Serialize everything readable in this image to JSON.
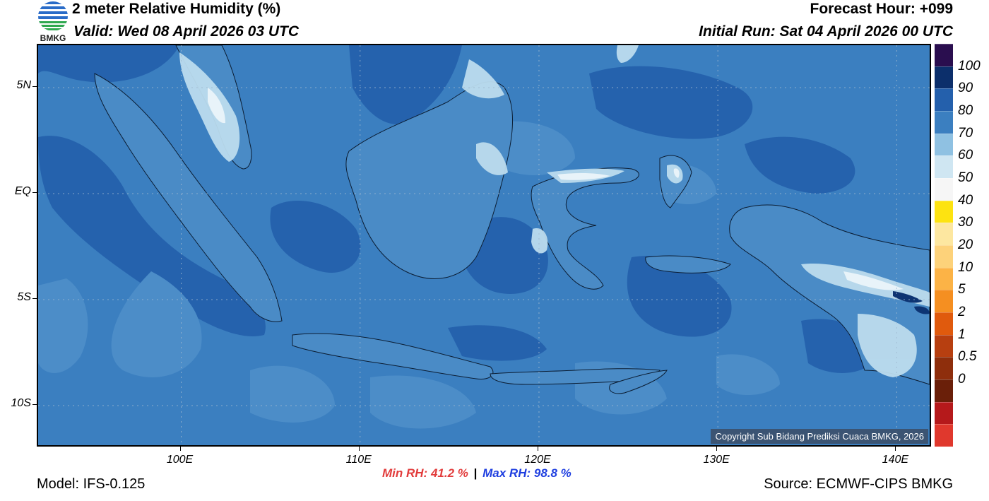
{
  "header": {
    "title": "2 meter Relative Humidity (%)",
    "valid": "Valid: Wed 08 April 2026 03 UTC",
    "forecast_hour": "Forecast Hour: +099",
    "initial_run": "Initial Run: Sat 04 April 2026 00 UTC",
    "logo_text": "BMKG"
  },
  "map": {
    "lon_range": [
      92,
      142
    ],
    "lat_range": [
      -12,
      7
    ],
    "lat_ticks": [
      {
        "lat": 5,
        "label": "5N"
      },
      {
        "lat": 0,
        "label": "EQ"
      },
      {
        "lat": -5,
        "label": "5S"
      },
      {
        "lat": -10,
        "label": "10S"
      }
    ],
    "lon_ticks": [
      {
        "lon": 100,
        "label": "100E"
      },
      {
        "lon": 110,
        "label": "110E"
      },
      {
        "lon": 120,
        "label": "120E"
      },
      {
        "lon": 130,
        "label": "130E"
      },
      {
        "lon": 140,
        "label": "140E"
      }
    ],
    "background_color": "#3b7fc0",
    "copyright": "Copyright Sub Bidang Prediksi Cuaca BMKG, 2026"
  },
  "colorbar": {
    "colors_top_to_bottom": [
      "#2a0e4f",
      "#0c2f6b",
      "#2460ac",
      "#3b7fc0",
      "#8fc1e2",
      "#cfe6f2",
      "#f6f6f6",
      "#fde311",
      "#fde7a0",
      "#fdd27a",
      "#fcb346",
      "#f58f21",
      "#e05a0d",
      "#b73f10",
      "#8e2e0c",
      "#6a1f09",
      "#b5191b",
      "#e0382d"
    ],
    "labels": [
      "100",
      "90",
      "80",
      "70",
      "60",
      "50",
      "40",
      "30",
      "20",
      "10",
      "5",
      "2",
      "1",
      "0.5",
      "0"
    ]
  },
  "stats": {
    "min_label": "Min RH:",
    "min_value": "41.2 %",
    "separator": "|",
    "max_label": "Max RH:",
    "max_value": "98.8 %",
    "min_color": "#e23c3c",
    "max_color": "#1f3fe0"
  },
  "footer": {
    "model": "Model: IFS-0.125",
    "source": "Source: ECMWF-CIPS BMKG"
  }
}
